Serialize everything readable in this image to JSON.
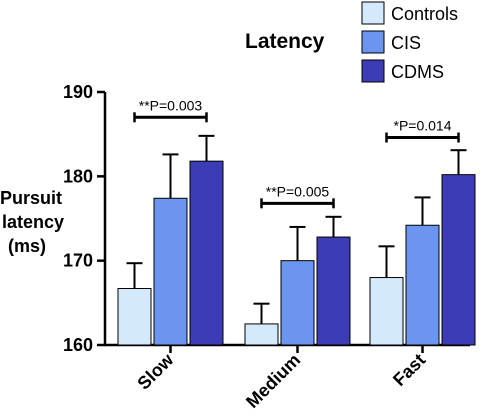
{
  "chart_data": {
    "type": "bar",
    "title": "Latency",
    "ylabel": [
      "Pursuit",
      "latency",
      "(ms)"
    ],
    "xlabel": "",
    "ylim": [
      160,
      190
    ],
    "yticks": [
      160,
      170,
      180,
      190
    ],
    "grid": false,
    "legend_position": "top-right",
    "categories": [
      "Slow",
      "Medium",
      "Fast"
    ],
    "series": [
      {
        "name": "Controls",
        "color": "#d4e9fb",
        "values": [
          166.7,
          162.5,
          168.0
        ],
        "error": [
          3.0,
          2.4,
          3.7
        ]
      },
      {
        "name": "CIS",
        "color": "#6b95ee",
        "values": [
          177.4,
          170.0,
          174.2
        ],
        "error": [
          5.2,
          4.0,
          3.3
        ]
      },
      {
        "name": "CDMS",
        "color": "#3c3db5",
        "values": [
          181.8,
          172.8,
          180.2
        ],
        "error": [
          3.0,
          2.4,
          2.9
        ]
      }
    ],
    "annotations": [
      {
        "category": "Slow",
        "text": "**P=0.003",
        "y": 187.0
      },
      {
        "category": "Medium",
        "text": "**P=0.005",
        "y": 176.8
      },
      {
        "category": "Fast",
        "text": "*P=0.014",
        "y": 184.6
      }
    ]
  }
}
